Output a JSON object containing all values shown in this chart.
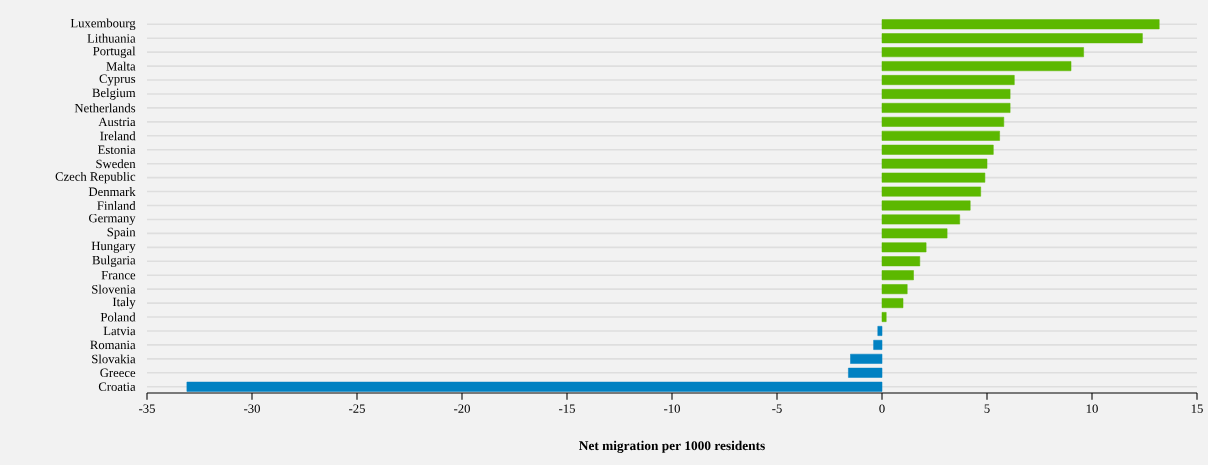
{
  "chart_data": {
    "type": "bar",
    "orientation": "horizontal",
    "xlabel": "Net migration per 1000 residents",
    "categories": [
      "Luxembourg",
      "Lithuania",
      "Portugal",
      "Malta",
      "Cyprus",
      "Belgium",
      "Netherlands",
      "Austria",
      "Ireland",
      "Estonia",
      "Sweden",
      "Czech Republic",
      "Denmark",
      "Finland",
      "Germany",
      "Spain",
      "Hungary",
      "Bulgaria",
      "France",
      "Slovenia",
      "Italy",
      "Poland",
      "Latvia",
      "Romania",
      "Slovakia",
      "Greece",
      "Croatia"
    ],
    "values": [
      13.2,
      12.4,
      9.6,
      9.0,
      6.3,
      6.1,
      6.1,
      5.8,
      5.6,
      5.3,
      5.0,
      4.9,
      4.7,
      4.2,
      3.7,
      3.1,
      2.1,
      1.8,
      1.5,
      1.2,
      1.0,
      0.2,
      -0.2,
      -0.4,
      -1.5,
      -1.6,
      -33.1
    ],
    "colors": [
      "#5cb800",
      "#5cb800",
      "#5cb800",
      "#5cb800",
      "#5cb800",
      "#5cb800",
      "#5cb800",
      "#5cb800",
      "#5cb800",
      "#5cb800",
      "#5cb800",
      "#5cb800",
      "#5cb800",
      "#5cb800",
      "#5cb800",
      "#5cb800",
      "#5cb800",
      "#5cb800",
      "#5cb800",
      "#5cb800",
      "#5cb800",
      "#5cb800",
      "#0081c2",
      "#0081c2",
      "#0081c2",
      "#0081c2",
      "#0081c2"
    ],
    "xlim": [
      -35,
      15
    ],
    "xticks": [
      -35,
      -30,
      -25,
      -20,
      -15,
      -10,
      -5,
      0,
      5,
      10,
      15
    ],
    "grid": "y"
  }
}
